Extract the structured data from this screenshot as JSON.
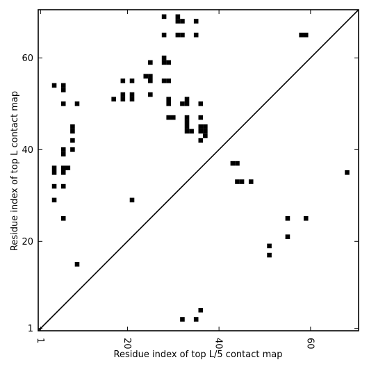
{
  "chart_data": {
    "type": "scatter",
    "title": "",
    "xlabel": "Residue index of top L/5 contact map",
    "ylabel": "Residue index of top L contact map",
    "xlim": [
      0.5,
      70.5
    ],
    "ylim": [
      0.5,
      70.5
    ],
    "x_ticks": [
      1,
      20,
      40,
      60
    ],
    "y_ticks": [
      1,
      20,
      40,
      60
    ],
    "x_tick_rotation": -90,
    "grid": false,
    "legend": "none",
    "diagonal": true,
    "marker": "square",
    "colors": {
      "marker": "#000000",
      "diagonal": "#000000",
      "axes": "#000000",
      "background": "#ffffff"
    },
    "points": [
      [
        4,
        54
      ],
      [
        4,
        36
      ],
      [
        4,
        35
      ],
      [
        4,
        32
      ],
      [
        4,
        29
      ],
      [
        6,
        54
      ],
      [
        6,
        53
      ],
      [
        6,
        50
      ],
      [
        6,
        40
      ],
      [
        6,
        39
      ],
      [
        6,
        36
      ],
      [
        6,
        35
      ],
      [
        6,
        32
      ],
      [
        6,
        25
      ],
      [
        7,
        36
      ],
      [
        8,
        45
      ],
      [
        8,
        44
      ],
      [
        8,
        42
      ],
      [
        8,
        40
      ],
      [
        9,
        50
      ],
      [
        9,
        15
      ],
      [
        17,
        51
      ],
      [
        19,
        55
      ],
      [
        19,
        52
      ],
      [
        19,
        51
      ],
      [
        21,
        55
      ],
      [
        21,
        52
      ],
      [
        21,
        51
      ],
      [
        21,
        29
      ],
      [
        24,
        56
      ],
      [
        25,
        59
      ],
      [
        25,
        56
      ],
      [
        25,
        55
      ],
      [
        25,
        52
      ],
      [
        28,
        69
      ],
      [
        28,
        65
      ],
      [
        28,
        60
      ],
      [
        28,
        59
      ],
      [
        28,
        55
      ],
      [
        29,
        59
      ],
      [
        29,
        55
      ],
      [
        29,
        51
      ],
      [
        29,
        50
      ],
      [
        29,
        47
      ],
      [
        30,
        47
      ],
      [
        31,
        69
      ],
      [
        31,
        68
      ],
      [
        31,
        65
      ],
      [
        32,
        68
      ],
      [
        32,
        65
      ],
      [
        32,
        50
      ],
      [
        32,
        3
      ],
      [
        33,
        51
      ],
      [
        33,
        50
      ],
      [
        33,
        47
      ],
      [
        33,
        46
      ],
      [
        33,
        45
      ],
      [
        33,
        44
      ],
      [
        34,
        44
      ],
      [
        35,
        68
      ],
      [
        35,
        65
      ],
      [
        35,
        3
      ],
      [
        36,
        50
      ],
      [
        36,
        47
      ],
      [
        36,
        45
      ],
      [
        36,
        44
      ],
      [
        36,
        42
      ],
      [
        36,
        5
      ],
      [
        37,
        45
      ],
      [
        37,
        44
      ],
      [
        37,
        43
      ],
      [
        43,
        37
      ],
      [
        44,
        37
      ],
      [
        44,
        33
      ],
      [
        45,
        33
      ],
      [
        47,
        33
      ],
      [
        51,
        19
      ],
      [
        51,
        17
      ],
      [
        55,
        25
      ],
      [
        55,
        21
      ],
      [
        58,
        65
      ],
      [
        59,
        65
      ],
      [
        59,
        25
      ],
      [
        68,
        35
      ]
    ]
  }
}
